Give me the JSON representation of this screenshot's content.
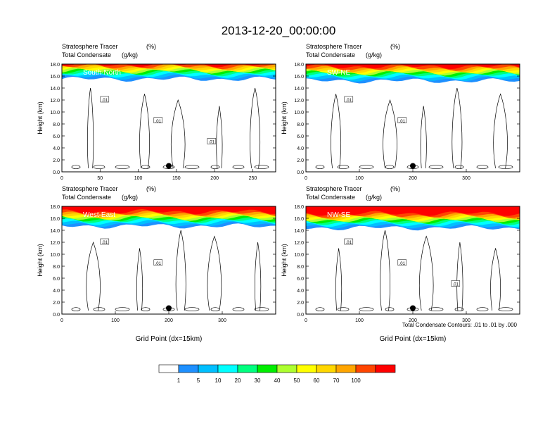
{
  "figure_title": "2013-12-20_00:00:00",
  "contour_note": "Total Condensate Contours: .01 to .01 by .000",
  "colorbar": {
    "labels": [
      "1",
      "5",
      "10",
      "20",
      "30",
      "40",
      "50",
      "60",
      "70",
      "100"
    ],
    "colors": [
      "#ffffff",
      "#1e90ff",
      "#00bfff",
      "#00ffff",
      "#00ff7f",
      "#00ee00",
      "#adff2f",
      "#ffff00",
      "#ffd700",
      "#ffa500",
      "#ff4500",
      "#ff0000"
    ]
  },
  "chart_data": [
    {
      "type": "contour",
      "panel_label": "South-North",
      "subtitle_line1": "Stratosphere Tracer",
      "subtitle_unit1": "(%)",
      "subtitle_line2": "Total Condensate",
      "subtitle_unit2": "(g/kg)",
      "ylabel": "Height (km)",
      "xlabel": "",
      "xlim": [
        0,
        280
      ],
      "ylim": [
        0,
        18
      ],
      "xticks": [
        0,
        50,
        100,
        150,
        200,
        250
      ],
      "yticks": [
        "0.0",
        "2.0",
        "4.0",
        "6.0",
        "8.0",
        "10.0",
        "12.0",
        "14.0",
        "16.0",
        "18.0"
      ],
      "contour_labels": [
        ".01",
        ".01",
        ".01"
      ],
      "marker": {
        "x": 140,
        "y": 1.0
      },
      "tracer_base_km": 16.3
    },
    {
      "type": "contour",
      "panel_label": "SW-NE",
      "subtitle_line1": "Stratosphere Tracer",
      "subtitle_unit1": "(%)",
      "subtitle_line2": "Total Condensate",
      "subtitle_unit2": "(g/kg)",
      "ylabel": "Height (km)",
      "xlabel": "",
      "xlim": [
        0,
        400
      ],
      "ylim": [
        0,
        18
      ],
      "xticks": [
        0,
        100,
        200,
        300
      ],
      "yticks": [
        "0.0",
        "2.0",
        "4.0",
        "6.0",
        "8.0",
        "10.0",
        "12.0",
        "14.0",
        "16.0",
        "18.0"
      ],
      "contour_labels": [
        ".01",
        ".01"
      ],
      "marker": {
        "x": 200,
        "y": 1.0
      },
      "tracer_base_km": 16.0
    },
    {
      "type": "contour",
      "panel_label": "West-East",
      "subtitle_line1": "Stratosphere Tracer",
      "subtitle_unit1": "(%)",
      "subtitle_line2": "Total Condensate",
      "subtitle_unit2": "(g/kg)",
      "ylabel": "Height (km)",
      "xlabel": "Grid Point (dx=15km)",
      "xlim": [
        0,
        400
      ],
      "ylim": [
        0,
        18
      ],
      "xticks": [
        0,
        100,
        200,
        300
      ],
      "yticks": [
        "0.0",
        "2.0",
        "4.0",
        "6.0",
        "8.0",
        "10.0",
        "12.0",
        "14.0",
        "16.0",
        "18.0"
      ],
      "contour_labels": [
        ".01",
        ".01"
      ],
      "marker": {
        "x": 200,
        "y": 1.0
      },
      "tracer_base_km": 15.5
    },
    {
      "type": "contour",
      "panel_label": "NW-SE",
      "subtitle_line1": "Stratosphere Tracer",
      "subtitle_unit1": "(%)",
      "subtitle_line2": "Total Condensate",
      "subtitle_unit2": "(g/kg)",
      "ylabel": "Height (km)",
      "xlabel": "Grid Point (dx=15km)",
      "xlim": [
        0,
        400
      ],
      "ylim": [
        0,
        18
      ],
      "xticks": [
        0,
        100,
        200,
        300
      ],
      "yticks": [
        "0.0",
        "2.0",
        "4.0",
        "6.0",
        "8.0",
        "10.0",
        "12.0",
        "14.0",
        "16.0",
        "18.0"
      ],
      "contour_labels": [
        ".01",
        ".01",
        ".01"
      ],
      "marker": {
        "x": 200,
        "y": 1.0
      },
      "tracer_base_km": 15.2
    }
  ]
}
